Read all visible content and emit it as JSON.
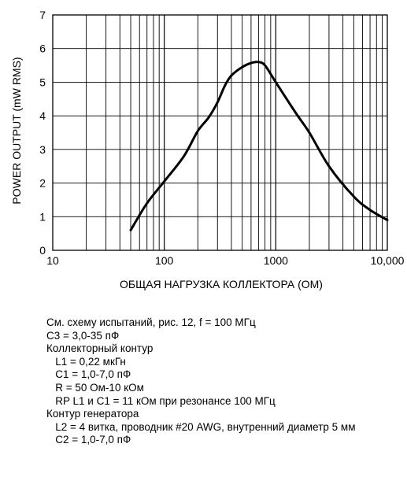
{
  "chart_data": {
    "type": "line",
    "xscale": "log",
    "xlim": [
      10,
      10000
    ],
    "ylim": [
      0,
      7
    ],
    "xlabel": "ОБЩАЯ НАГРУЗКА КОЛЛЕКТОРА (OM)",
    "ylabel": "POWER OUTPUT (mW RMS)",
    "x_ticks": [
      "10",
      "100",
      "1000",
      "10,000"
    ],
    "y_ticks": [
      "0",
      "1",
      "2",
      "3",
      "4",
      "5",
      "6",
      "7"
    ],
    "grid": true,
    "series": [
      {
        "x": [
          50,
          70,
          100,
          150,
          200,
          250,
          300,
          350,
          400,
          500,
          600,
          700,
          800,
          1000,
          1500,
          2000,
          3000,
          5000,
          7000,
          10000
        ],
        "y": [
          0.6,
          1.4,
          2.05,
          2.8,
          3.55,
          3.95,
          4.4,
          4.9,
          5.2,
          5.45,
          5.57,
          5.6,
          5.5,
          5.0,
          4.1,
          3.5,
          2.5,
          1.6,
          1.2,
          0.9
        ]
      }
    ]
  },
  "notes": [
    "См. схему испытаний, рис. 12, f = 100 МГц",
    "C3 = 3,0-35 пФ",
    "Коллекторный контур",
    "   L1 = 0,22 мкГн",
    "   C1 = 1,0-7,0 пФ",
    "   R = 50 Ом-10 кОм",
    "   RP L1 и C1 = 11 кОм при резонансе 100 МГц",
    "Контур генератора",
    "   L2 = 4 витка, проводник #20 AWG, внутренний диаметр 5 мм",
    "   C2 = 1,0-7,0 пФ"
  ]
}
